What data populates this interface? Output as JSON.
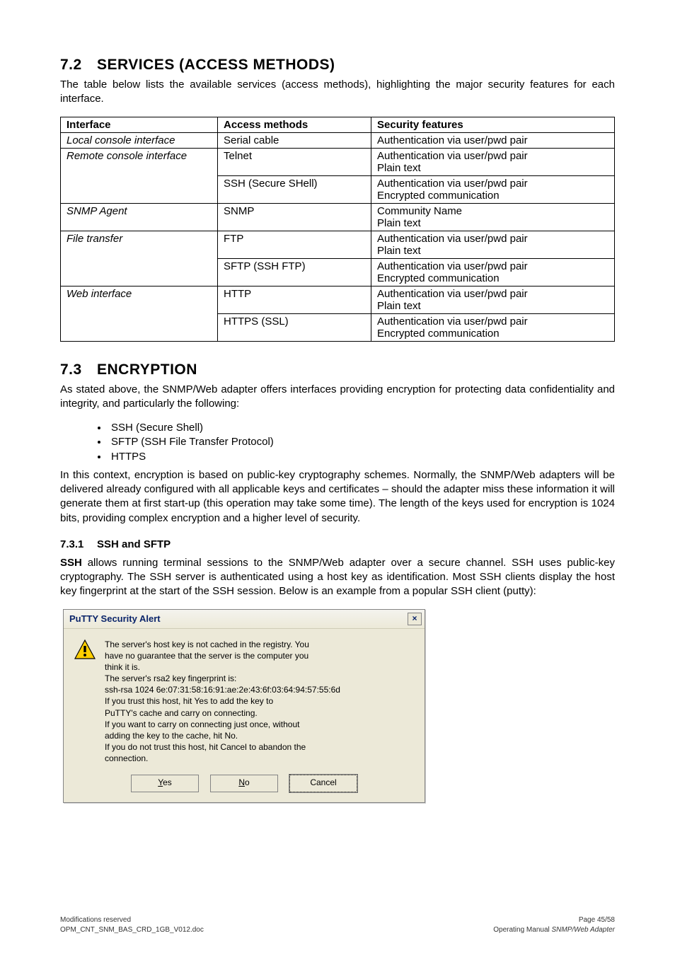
{
  "section72": {
    "number": "7.2",
    "title": "SERVICES (ACCESS METHODS)",
    "intro": "The table below lists the available services (access methods), highlighting the major security features for each interface."
  },
  "table": {
    "headers": [
      "Interface",
      "Access methods",
      "Security features"
    ],
    "rows": [
      {
        "iface": "Local console interface",
        "method": "Serial cable",
        "sec": "Authentication via user/pwd pair",
        "rowspan_iface": 1
      },
      {
        "iface": "Remote console interface",
        "method": "Telnet",
        "sec": "Authentication via user/pwd pair\nPlain text",
        "rowspan_iface": 2
      },
      {
        "iface": "",
        "method": "SSH (Secure SHell)",
        "sec": "Authentication via user/pwd pair\nEncrypted communication"
      },
      {
        "iface": "SNMP Agent",
        "method": "SNMP",
        "sec": "Community Name\nPlain text",
        "rowspan_iface": 1
      },
      {
        "iface": "File transfer",
        "method": "FTP",
        "sec": "Authentication via user/pwd pair\nPlain text",
        "rowspan_iface": 2
      },
      {
        "iface": "",
        "method": "SFTP (SSH FTP)",
        "sec": "Authentication via user/pwd pair\nEncrypted communication"
      },
      {
        "iface": "Web interface",
        "method": "HTTP",
        "sec": "Authentication via user/pwd pair\nPlain text",
        "rowspan_iface": 2
      },
      {
        "iface": "",
        "method": "HTTPS (SSL)",
        "sec": "Authentication via user/pwd pair\nEncrypted communication"
      }
    ]
  },
  "section73": {
    "number": "7.3",
    "title": "ENCRYPTION",
    "intro": "As stated above, the SNMP/Web adapter offers interfaces providing encryption for protecting data confidentiality and integrity, and particularly the following:",
    "bullets": [
      "SSH (Secure Shell)",
      "SFTP (SSH File Transfer Protocol)",
      "HTTPS"
    ],
    "para2": "In this context, encryption is based on public-key cryptography schemes. Normally, the SNMP/Web adapters will be delivered already configured with all applicable keys and certificates – should the adapter miss these information it will generate them at first start-up (this operation may take some time). The length of the keys used for encryption is 1024 bits, providing complex encryption and a higher level of security."
  },
  "section731": {
    "number": "7.3.1",
    "title": "SSH and SFTP",
    "para_prefix": "SSH",
    "para": " allows running terminal sessions to the SNMP/Web adapter over a secure channel. SSH uses public-key cryptography. The SSH server is authenticated using a host key as identification. Most SSH clients display the host key fingerprint at the start of the SSH session. Below is an example from a popular SSH client (putty):"
  },
  "dialog": {
    "title": "PuTTY Security Alert",
    "close": "×",
    "l1": "The server's host key is not cached in the registry. You",
    "l2": "have no guarantee that the server is the computer you",
    "l3": "think it is.",
    "l4": "The server's rsa2 key fingerprint is:",
    "l5": "ssh-rsa 1024 6e:07:31:58:16:91:ae:2e:43:6f:03:64:94:57:55:6d",
    "l6": "If you trust this host, hit Yes to add the key to",
    "l7": "PuTTY's cache and carry on connecting.",
    "l8": "If you want to carry on connecting just once, without",
    "l9": "adding the key to the cache, hit No.",
    "l10": "If you do not trust this host, hit Cancel to abandon the",
    "l11": "connection.",
    "btn_yes_u": "Y",
    "btn_yes_r": "es",
    "btn_no_u": "N",
    "btn_no_r": "o",
    "btn_cancel": "Cancel"
  },
  "footer": {
    "left1": "Modifications reserved",
    "left2": "OPM_CNT_SNM_BAS_CRD_1GB_V012.doc",
    "right1": "Page 45/58",
    "right2_pre": "Operating Manual ",
    "right2_ital": "SNMP/Web Adapter"
  }
}
